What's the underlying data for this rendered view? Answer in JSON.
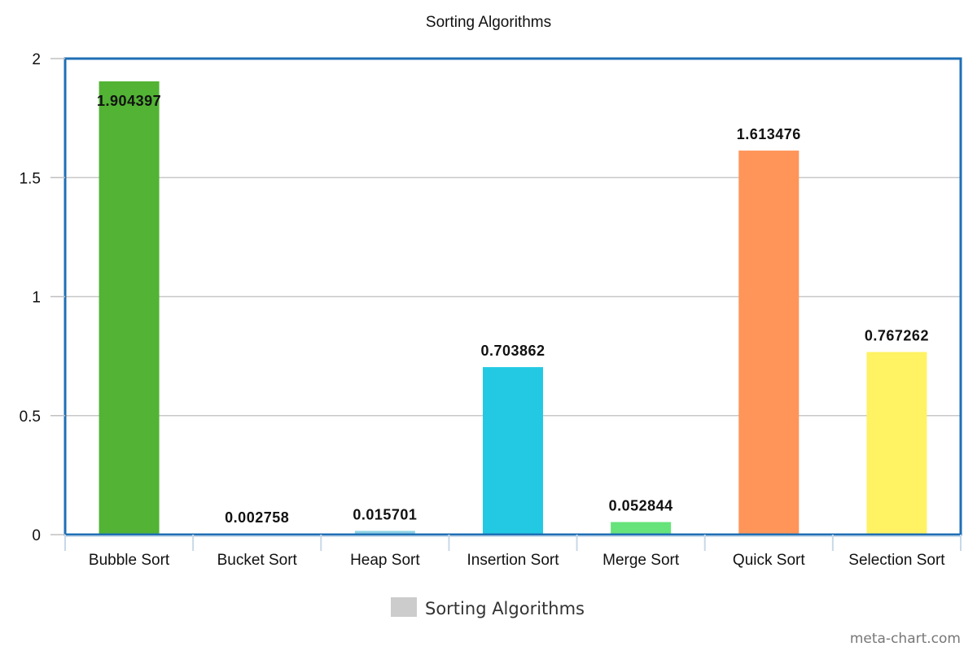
{
  "chart_data": {
    "type": "bar",
    "title": "Sorting Algorithms",
    "categories": [
      "Bubble Sort",
      "Bucket Sort",
      "Heap Sort",
      "Insertion Sort",
      "Merge Sort",
      "Quick Sort",
      "Selection Sort"
    ],
    "series": [
      {
        "name": "Sorting Algorithms",
        "values": [
          1.904397,
          0.002758,
          0.015701,
          0.703862,
          0.052844,
          1.613476,
          0.767262
        ],
        "value_labels": [
          "1.904397",
          "0.002758",
          "0.015701",
          "0.703862",
          "0.052844",
          "1.613476",
          "0.767262"
        ]
      }
    ],
    "colors": [
      "#52b334",
      "#8ed2e3",
      "#8ed2e3",
      "#23c9e3",
      "#66e37a",
      "#ff9558",
      "#fff263"
    ],
    "ylim": [
      0,
      2
    ],
    "yticks": [
      0,
      0.5,
      1,
      1.5,
      2
    ],
    "ytick_labels": [
      "0",
      "0.5",
      "1",
      "1.5",
      "2"
    ],
    "xlabel": "",
    "ylabel": "",
    "grid": true,
    "grid_color": "#c8c8c8",
    "frame_color": "#1f6fb5",
    "legend": {
      "position": "bottom",
      "label": "Sorting Algorithms",
      "swatch_color": "#cccccc"
    }
  },
  "watermark": "meta-chart.com"
}
